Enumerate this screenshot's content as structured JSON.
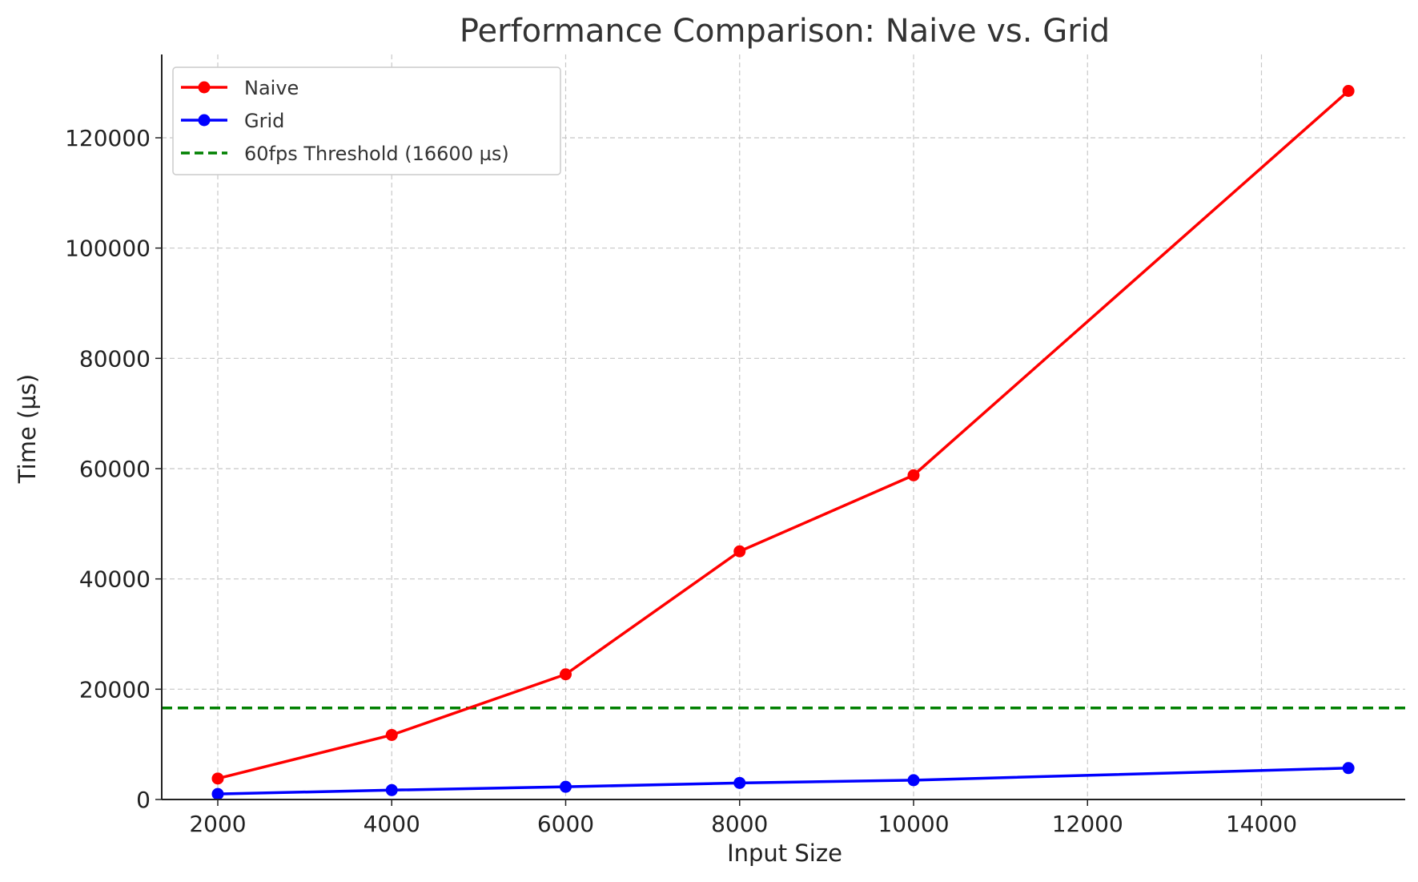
{
  "chart_data": {
    "type": "line",
    "title": "Performance Comparison: Naive vs. Grid",
    "xlabel": "Input Size",
    "ylabel": "Time (µs)",
    "xlim": [
      1680,
      15640
    ],
    "ylim": [
      0,
      125000
    ],
    "xticks": [
      2000,
      4000,
      6000,
      8000,
      10000,
      12000,
      14000
    ],
    "yticks": [
      0,
      20000,
      40000,
      60000,
      80000,
      100000,
      120000
    ],
    "grid": true,
    "legend_position": "top-left",
    "series": [
      {
        "name": "Naive",
        "color": "#ff0000",
        "x": [
          2000,
          4000,
          6000,
          8000,
          10000,
          15000
        ],
        "y": [
          3800,
          11700,
          22700,
          45000,
          58800,
          128500
        ]
      },
      {
        "name": "Grid",
        "color": "#0000ff",
        "x": [
          2000,
          4000,
          6000,
          8000,
          10000,
          15000
        ],
        "y": [
          1000,
          1700,
          2300,
          3000,
          3500,
          5700
        ]
      }
    ],
    "threshold": {
      "name": "60fps Threshold (16600 µs)",
      "value": 16600,
      "color": "#008000",
      "style": "dashed"
    }
  }
}
